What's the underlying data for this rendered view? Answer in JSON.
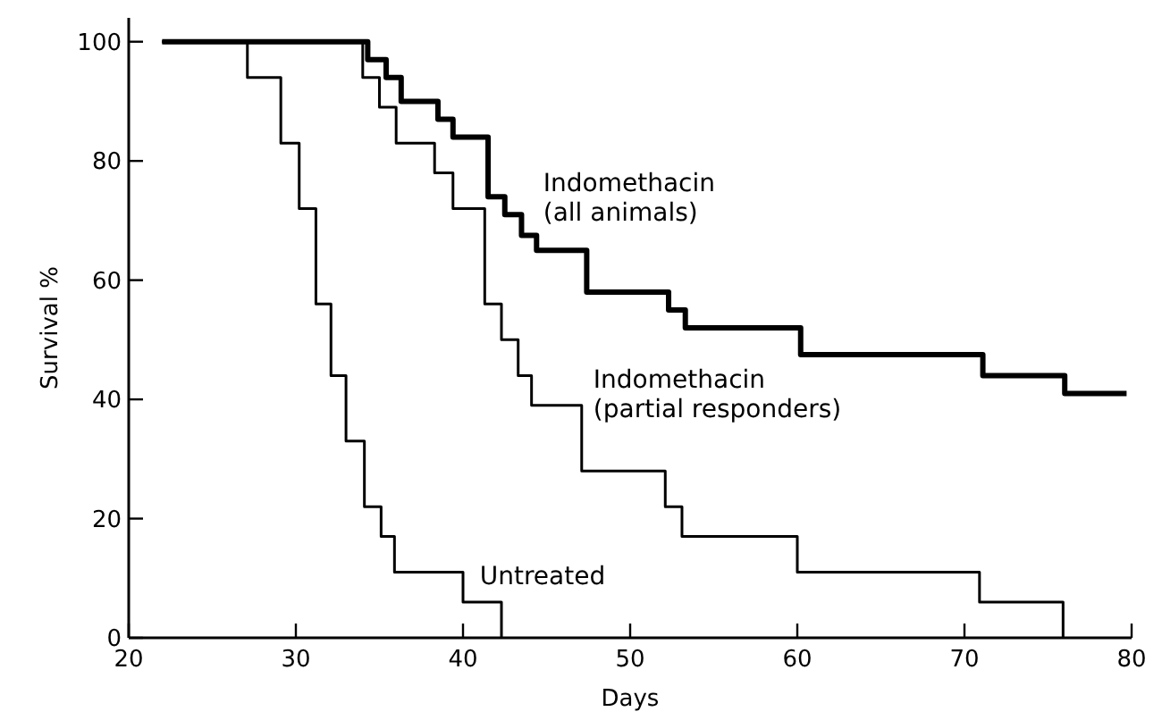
{
  "chart_data": {
    "type": "step",
    "xlabel": "Days",
    "ylabel": "Survival %",
    "xlim": [
      20,
      80
    ],
    "ylim": [
      0,
      104
    ],
    "xticks": [
      20,
      30,
      40,
      50,
      60,
      70,
      80
    ],
    "yticks": [
      0,
      20,
      40,
      60,
      80,
      100
    ],
    "grid": false,
    "marker": "none",
    "line_style": "solid",
    "series": [
      {
        "name": "Indomethacin (all animals)",
        "color": "#000000",
        "x": [
          22,
          34.3,
          35.4,
          36.3,
          38.5,
          39.4,
          41.5,
          42.5,
          43.5,
          44.4,
          47.4,
          52.3,
          53.3,
          60.2,
          71.1,
          76,
          79.7
        ],
        "values": [
          100,
          97,
          94,
          90,
          87,
          84,
          74,
          71,
          67.5,
          65,
          58,
          55,
          52,
          47.5,
          44,
          41,
          41
        ]
      },
      {
        "name": "Indomethacin (partial responders)",
        "color": "#000000",
        "x": [
          22,
          34,
          35,
          36,
          38.3,
          39.4,
          41.3,
          42.3,
          43.3,
          44.1,
          47.1,
          52.1,
          53.1,
          60,
          70.9,
          75.9
        ],
        "values": [
          100,
          94,
          89,
          83,
          78,
          72,
          56,
          50,
          44,
          39,
          28,
          22,
          17,
          11,
          6,
          0
        ]
      },
      {
        "name": "Untreated",
        "color": "#000000",
        "x": [
          22,
          27.1,
          29.1,
          30.2,
          31.2,
          32.1,
          33,
          34.1,
          35.1,
          35.9,
          40,
          42.3
        ],
        "values": [
          100,
          94,
          83,
          72,
          56,
          44,
          33,
          22,
          17,
          11,
          6,
          0
        ]
      }
    ]
  }
}
